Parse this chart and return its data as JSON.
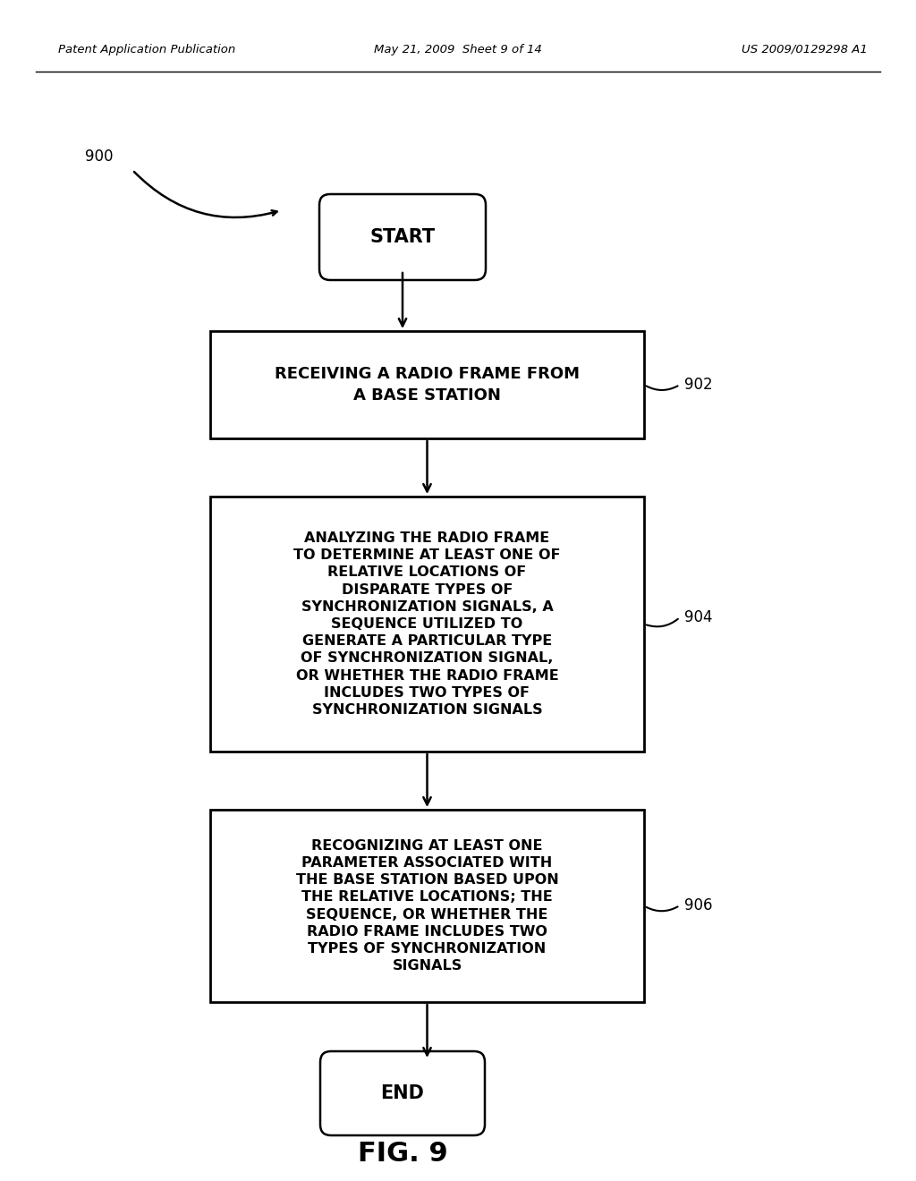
{
  "title": "FIG. 9",
  "header_left": "Patent Application Publication",
  "header_mid": "May 21, 2009  Sheet 9 of 14",
  "header_right": "US 2009/0129298 A1",
  "figure_label": "900",
  "bg_color": "#ffffff",
  "start_text": "START",
  "end_text": "END",
  "box1_text": "RECEIVING A RADIO FRAME FROM\nA BASE STATION",
  "box1_label": "902",
  "box2_text": "ANALYZING THE RADIO FRAME\nTO DETERMINE AT LEAST ONE OF\nRELATIVE LOCATIONS OF\nDISPARATE TYPES OF\nSYNCHRONIZATION SIGNALS, A\nSEQUENCE UTILIZED TO\nGENERATE A PARTICULAR TYPE\nOF SYNCHRONIZATION SIGNAL,\nOR WHETHER THE RADIO FRAME\nINCLUDES TWO TYPES OF\nSYNCHRONIZATION SIGNALS",
  "box2_label": "904",
  "box3_text": "RECOGNIZING AT LEAST ONE\nPARAMETER ASSOCIATED WITH\nTHE BASE STATION BASED UPON\nTHE RELATIVE LOCATIONS; THE\nSEQUENCE, OR WHETHER THE\nRADIO FRAME INCLUDES TWO\nTYPES OF SYNCHRONIZATION\nSIGNALS",
  "box3_label": "906"
}
